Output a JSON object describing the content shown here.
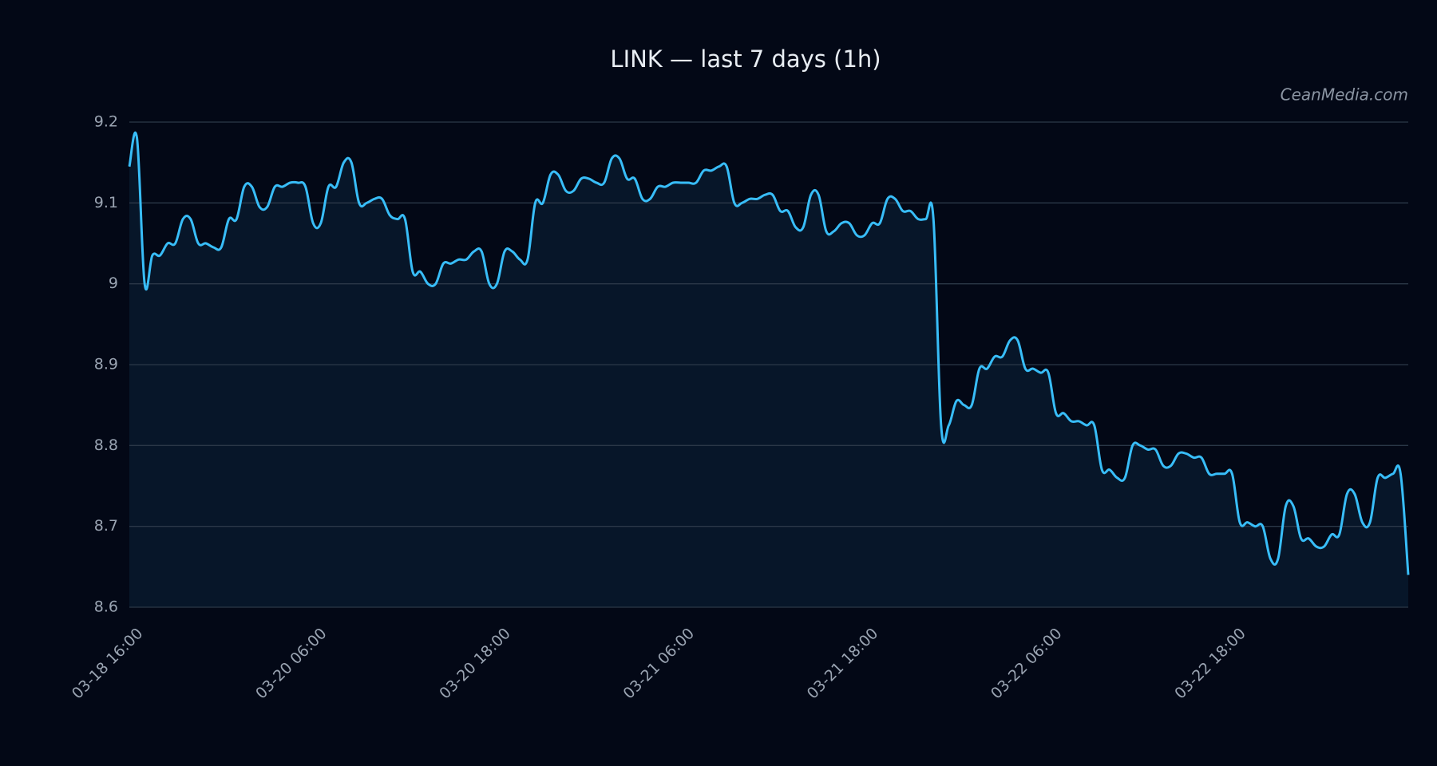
{
  "chart_data": {
    "type": "line",
    "title": "LINK — last 7 days (1h)",
    "watermark": "CeanMedia.com",
    "categories": [
      "03-18 16:00",
      null,
      null,
      null,
      null,
      null,
      null,
      null,
      null,
      null,
      null,
      null,
      null,
      null,
      null,
      null,
      null,
      null,
      null,
      null,
      null,
      null,
      null,
      null,
      "03-20 06:00",
      null,
      null,
      null,
      null,
      null,
      null,
      null,
      null,
      null,
      null,
      null,
      null,
      null,
      null,
      null,
      null,
      null,
      null,
      null,
      null,
      null,
      null,
      null,
      "03-20 18:00",
      null,
      null,
      null,
      null,
      null,
      null,
      null,
      null,
      null,
      null,
      null,
      null,
      null,
      null,
      null,
      null,
      null,
      null,
      null,
      null,
      null,
      null,
      null,
      "03-21 06:00",
      null,
      null,
      null,
      null,
      null,
      null,
      null,
      null,
      null,
      null,
      null,
      null,
      null,
      null,
      null,
      null,
      null,
      null,
      null,
      null,
      null,
      null,
      null,
      "03-21 18:00",
      null,
      null,
      null,
      null,
      null,
      null,
      null,
      null,
      null,
      null,
      null,
      null,
      null,
      null,
      null,
      null,
      null,
      null,
      null,
      null,
      null,
      null,
      null,
      "03-22 06:00",
      null,
      null,
      null,
      null,
      null,
      null,
      null,
      null,
      null,
      null,
      null,
      null,
      null,
      null,
      null,
      null,
      null,
      null,
      null,
      null,
      null,
      null,
      null,
      "03-22 18:00",
      null,
      null,
      null,
      null,
      null,
      null,
      null,
      null,
      null,
      null,
      null,
      null,
      null,
      null,
      null,
      null,
      null,
      null,
      null,
      null,
      null,
      null,
      null
    ],
    "series": [
      {
        "name": "LINK",
        "color": "#38bdf8",
        "values": [
          9.145,
          9.18,
          9.0,
          9.035,
          9.035,
          9.05,
          9.05,
          9.08,
          9.08,
          9.05,
          9.05,
          9.045,
          9.045,
          9.08,
          9.08,
          9.12,
          9.12,
          9.095,
          9.095,
          9.12,
          9.12,
          9.125,
          9.125,
          9.12,
          9.075,
          9.075,
          9.12,
          9.12,
          9.15,
          9.15,
          9.1,
          9.1,
          9.105,
          9.105,
          9.085,
          9.08,
          9.08,
          9.015,
          9.015,
          9.0,
          9.0,
          9.025,
          9.025,
          9.03,
          9.03,
          9.04,
          9.04,
          9.0,
          9.0,
          9.04,
          9.04,
          9.03,
          9.03,
          9.1,
          9.1,
          9.135,
          9.135,
          9.115,
          9.115,
          9.13,
          9.13,
          9.125,
          9.125,
          9.155,
          9.155,
          9.13,
          9.13,
          9.105,
          9.105,
          9.12,
          9.12,
          9.125,
          9.125,
          9.125,
          9.125,
          9.14,
          9.14,
          9.145,
          9.145,
          9.1,
          9.1,
          9.105,
          9.105,
          9.11,
          9.11,
          9.09,
          9.09,
          9.07,
          9.07,
          9.11,
          9.11,
          9.065,
          9.065,
          9.075,
          9.075,
          9.06,
          9.06,
          9.075,
          9.075,
          9.105,
          9.105,
          9.09,
          9.09,
          9.08,
          9.08,
          9.08,
          8.825,
          8.825,
          8.855,
          8.85,
          8.85,
          8.895,
          8.895,
          8.91,
          8.91,
          8.93,
          8.93,
          8.895,
          8.895,
          8.89,
          8.89,
          8.84,
          8.84,
          8.83,
          8.83,
          8.825,
          8.825,
          8.77,
          8.77,
          8.76,
          8.76,
          8.8,
          8.8,
          8.795,
          8.795,
          8.775,
          8.775,
          8.79,
          8.79,
          8.785,
          8.785,
          8.765,
          8.765,
          8.765,
          8.765,
          8.705,
          8.705,
          8.7,
          8.7,
          8.66,
          8.66,
          8.725,
          8.725,
          8.685,
          8.685,
          8.675,
          8.675,
          8.69,
          8.69,
          8.74,
          8.74,
          8.705,
          8.705,
          8.76,
          8.76,
          8.765,
          8.765,
          8.64
        ]
      }
    ],
    "ylim": [
      8.6,
      9.2
    ],
    "yticks": [
      8.6,
      8.7,
      8.8,
      8.9,
      9.0,
      9.1,
      9.2
    ],
    "grid": true
  }
}
